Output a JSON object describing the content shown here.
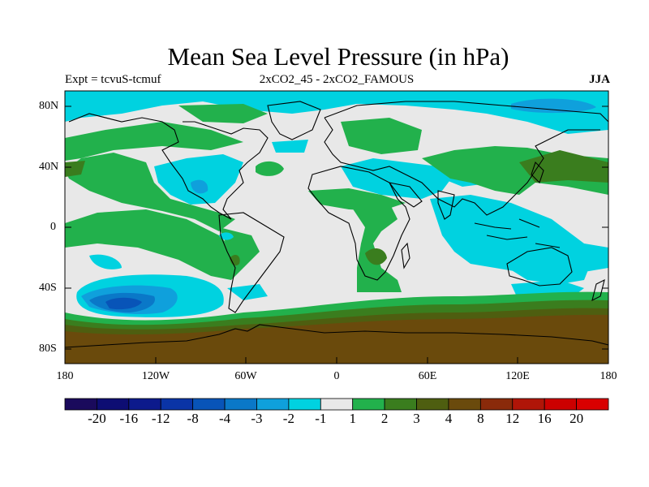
{
  "header": {
    "title": "Mean Sea Level Pressure (in hPa)",
    "left": "Expt = tcvuS-tcmuf",
    "center": "2xCO2_45 - 2xCO2_FAMOUS",
    "right": "JJA"
  },
  "axes": {
    "lat_labels": [
      "80N",
      "40N",
      "0",
      "40S",
      "80S"
    ],
    "lon_labels": [
      "180",
      "120W",
      "60W",
      "0",
      "60E",
      "120E",
      "180"
    ]
  },
  "colorbar": {
    "labels": [
      "-20",
      "-16",
      "-12",
      "-8",
      "-4",
      "-3",
      "-2",
      "-1",
      "1",
      "2",
      "3",
      "4",
      "8",
      "12",
      "16",
      "20"
    ],
    "colors": [
      "#1a0a5c",
      "#0d0d73",
      "#0c1a8c",
      "#0a34a6",
      "#0854b8",
      "#0a78c8",
      "#0fa0dc",
      "#00d2e0",
      "#e8e8e8",
      "#22b14c",
      "#3a7d1e",
      "#4e5e10",
      "#6a4a0c",
      "#8a2a0a",
      "#b01508",
      "#cc0000",
      "#d90000"
    ]
  },
  "map": {
    "colors": {
      "neutral": "#e8e8e8",
      "cyan": "#00d2e0",
      "sky": "#0fa0dc",
      "blue": "#0a78c8",
      "deepblue": "#0854b8",
      "green": "#22b14c",
      "olive": "#3a7d1e",
      "darkolive": "#4e5e10",
      "brown": "#6a4a0c"
    }
  }
}
